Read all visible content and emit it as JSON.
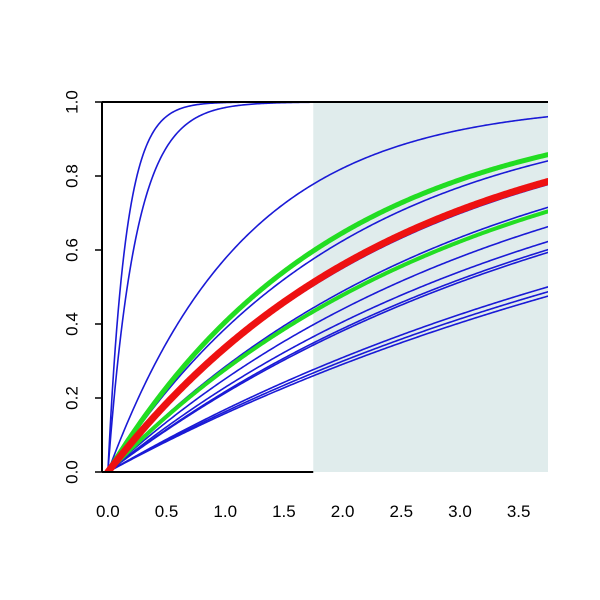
{
  "chart_data": {
    "type": "line",
    "title": "",
    "xlabel": "",
    "ylabel": "",
    "xlim": [
      -0.05,
      3.75
    ],
    "ylim": [
      0,
      1
    ],
    "x_ticks": [
      "0.0",
      "0.5",
      "1.0",
      "1.5",
      "2.0",
      "2.5",
      "3.0",
      "3.5"
    ],
    "y_ticks": [
      "0.0",
      "0.2",
      "0.4",
      "0.6",
      "0.8",
      "1.0"
    ],
    "shaded_region": {
      "x_from": 1.75,
      "x_to": 3.75,
      "color": "#e0ecec"
    },
    "series_curve": "y = 1 - exp(-k * x)",
    "x_samples": [
      0,
      0.1,
      0.2,
      0.3,
      0.4,
      0.5,
      0.75,
      1.0,
      1.25,
      1.5,
      1.75,
      2.0,
      2.25,
      2.5,
      2.75,
      3.0,
      3.25,
      3.5,
      3.75
    ],
    "series": [
      {
        "k": 6.5,
        "color": "#1a1ad6"
      },
      {
        "k": 4.2,
        "color": "#1a1ad6"
      },
      {
        "k": 0.86,
        "color": "#1a1ad6"
      },
      {
        "k": 0.52,
        "color": "#1a1ad6"
      },
      {
        "k": 0.49,
        "color": "#1a1ad6"
      },
      {
        "k": 0.41,
        "color": "#1a1ad6"
      },
      {
        "k": 0.4,
        "color": "#1a1ad6"
      },
      {
        "k": 0.335,
        "color": "#1a1ad6"
      },
      {
        "k": 0.29,
        "color": "#1a1ad6"
      },
      {
        "k": 0.26,
        "color": "#1a1ad6"
      },
      {
        "k": 0.245,
        "color": "#1a1ad6"
      },
      {
        "k": 0.24,
        "color": "#1a1ad6"
      },
      {
        "k": 0.185,
        "color": "#1a1ad6"
      },
      {
        "k": 0.178,
        "color": "#1a1ad6"
      },
      {
        "k": 0.172,
        "color": "#1a1ad6"
      },
      {
        "k": 0.52,
        "color": "#22dd22"
      },
      {
        "k": 0.325,
        "color": "#22dd22"
      },
      {
        "k": 0.41,
        "color": "#ee1111"
      }
    ],
    "series_styles": [
      {
        "stroke_width": 1.6
      },
      {
        "stroke_width": 1.6
      },
      {
        "stroke_width": 1.6
      },
      {
        "stroke_width": 1.6
      },
      {
        "stroke_width": 1.6
      },
      {
        "stroke_width": 1.6
      },
      {
        "stroke_width": 1.6
      },
      {
        "stroke_width": 1.6
      },
      {
        "stroke_width": 1.6
      },
      {
        "stroke_width": 1.6
      },
      {
        "stroke_width": 1.6
      },
      {
        "stroke_width": 1.6
      },
      {
        "stroke_width": 1.6
      },
      {
        "stroke_width": 1.6
      },
      {
        "stroke_width": 1.6
      },
      {
        "stroke_width": 5
      },
      {
        "stroke_width": 4
      },
      {
        "stroke_width": 7
      }
    ]
  }
}
